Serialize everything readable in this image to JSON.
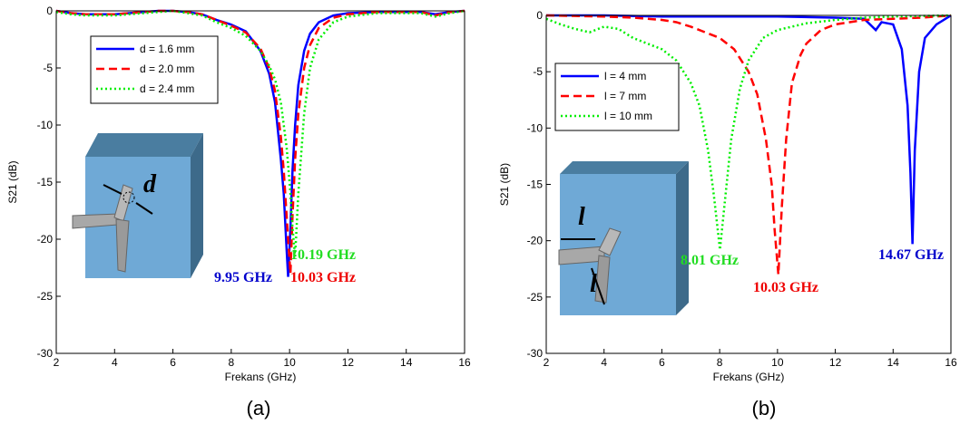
{
  "chart_data": [
    {
      "type": "line",
      "label": "(a)",
      "xlabel": "Frekans (GHz)",
      "ylabel": "S21 (dB)",
      "xlim": [
        2,
        16
      ],
      "ylim": [
        -30,
        0
      ],
      "xticks": [
        2,
        4,
        6,
        8,
        10,
        12,
        14,
        16
      ],
      "yticks": [
        -30,
        -25,
        -20,
        -15,
        -10,
        -5,
        0
      ],
      "legend": "upper left",
      "inset_labels": [
        "d"
      ],
      "series": [
        {
          "name": "d = 1.6 mm",
          "color": "#0000ff",
          "dash": "solid",
          "x": [
            2,
            2.5,
            3,
            3.5,
            4,
            4.5,
            5,
            5.5,
            6,
            6.5,
            7,
            7.5,
            8,
            8.5,
            9,
            9.3,
            9.5,
            9.7,
            9.8,
            9.9,
            9.95,
            10.03,
            10.1,
            10.19,
            10.3,
            10.5,
            10.7,
            11,
            11.5,
            12,
            13,
            14,
            14.5,
            15,
            15.5,
            16
          ],
          "values": [
            0,
            -0.2,
            -0.3,
            -0.3,
            -0.3,
            -0.2,
            -0.1,
            0,
            0,
            -0.1,
            -0.3,
            -0.8,
            -1.2,
            -1.8,
            -3.5,
            -5.5,
            -8,
            -13,
            -16,
            -21,
            -23.3,
            -19,
            -14,
            -10,
            -6.5,
            -3.5,
            -2,
            -1,
            -0.4,
            -0.2,
            -0.1,
            -0.1,
            -0.1,
            -0.3,
            -0.1,
            0
          ]
        },
        {
          "name": "d = 2.0 mm",
          "color": "#ff0000",
          "dash": "dashed",
          "x": [
            2,
            2.5,
            3,
            3.5,
            4,
            4.5,
            5,
            5.5,
            6,
            6.5,
            7,
            7.5,
            8,
            8.5,
            9,
            9.3,
            9.5,
            9.7,
            9.8,
            9.9,
            9.95,
            10.03,
            10.1,
            10.19,
            10.3,
            10.5,
            10.7,
            11,
            11.5,
            12,
            13,
            14,
            14.5,
            15,
            15.5,
            16
          ],
          "values": [
            0,
            -0.2,
            -0.3,
            -0.3,
            -0.3,
            -0.2,
            -0.1,
            0,
            0,
            -0.1,
            -0.3,
            -0.8,
            -1.3,
            -1.9,
            -3.3,
            -5,
            -7,
            -11,
            -14,
            -18,
            -20,
            -23,
            -18,
            -13,
            -9,
            -5,
            -3,
            -1.5,
            -0.6,
            -0.3,
            -0.1,
            -0.1,
            -0.1,
            -0.4,
            -0.1,
            0
          ]
        },
        {
          "name": "d = 2.4 mm",
          "color": "#00ee00",
          "dash": "dotted",
          "x": [
            2,
            2.5,
            3,
            3.5,
            4,
            4.5,
            5,
            5.5,
            6,
            6.5,
            7,
            7.5,
            8,
            8.5,
            9,
            9.3,
            9.5,
            9.7,
            9.8,
            9.9,
            9.95,
            10.03,
            10.1,
            10.19,
            10.3,
            10.5,
            10.7,
            11,
            11.5,
            12,
            13,
            14,
            14.5,
            15,
            15.5,
            16
          ],
          "values": [
            -0.1,
            -0.3,
            -0.4,
            -0.4,
            -0.4,
            -0.3,
            -0.2,
            -0.1,
            0,
            -0.2,
            -0.4,
            -1,
            -1.5,
            -2.2,
            -3.5,
            -4.8,
            -6,
            -8,
            -10,
            -12,
            -13.5,
            -16,
            -19,
            -21.5,
            -16,
            -9,
            -5,
            -2.5,
            -1,
            -0.5,
            -0.2,
            -0.2,
            -0.2,
            -0.5,
            -0.2,
            0
          ]
        }
      ],
      "annotations": [
        {
          "text": "9.95 GHz",
          "color": "#0000cc"
        },
        {
          "text": "10.03 GHz",
          "color": "#ee0000"
        },
        {
          "text": "10.19 GHz",
          "color": "#22dd22"
        }
      ]
    },
    {
      "type": "line",
      "label": "(b)",
      "xlabel": "Frekans (GHz)",
      "ylabel": "S21 (dB)",
      "xlim": [
        2,
        16
      ],
      "ylim": [
        -30,
        0
      ],
      "xticks": [
        2,
        4,
        6,
        8,
        10,
        12,
        14,
        16
      ],
      "yticks": [
        -30,
        -25,
        -20,
        -15,
        -10,
        -5,
        0
      ],
      "legend": "upper left",
      "inset_labels": [
        "l",
        "l"
      ],
      "series": [
        {
          "name": "l = 4 mm",
          "color": "#0000ff",
          "dash": "solid",
          "x": [
            2,
            4,
            6,
            8,
            10,
            12,
            13,
            13.2,
            13.4,
            13.6,
            14,
            14.3,
            14.5,
            14.6,
            14.67,
            14.75,
            14.9,
            15.1,
            15.5,
            16
          ],
          "values": [
            0,
            0,
            -0.1,
            -0.1,
            -0.1,
            -0.2,
            -0.3,
            -0.8,
            -1.3,
            -0.6,
            -0.8,
            -3,
            -8,
            -14,
            -20.3,
            -12,
            -5,
            -2,
            -0.8,
            0
          ]
        },
        {
          "name": "l = 7 mm",
          "color": "#ff0000",
          "dash": "dashed",
          "x": [
            2,
            4,
            5,
            6,
            6.5,
            7,
            7.5,
            8,
            8.5,
            9,
            9.3,
            9.6,
            9.8,
            9.9,
            10.03,
            10.15,
            10.3,
            10.5,
            10.8,
            11,
            11.5,
            12,
            13,
            14,
            15,
            16
          ],
          "values": [
            0,
            -0.1,
            -0.2,
            -0.4,
            -0.6,
            -1,
            -1.5,
            -2,
            -3,
            -5,
            -7,
            -11,
            -15,
            -19,
            -23,
            -17,
            -11,
            -6,
            -3.5,
            -2.5,
            -1.3,
            -0.8,
            -0.4,
            -0.3,
            -0.2,
            0
          ]
        },
        {
          "name": "l = 10 mm",
          "color": "#00ee00",
          "dash": "dotted",
          "x": [
            2,
            2.5,
            3,
            3.5,
            4,
            4.5,
            5,
            5.5,
            6,
            6.5,
            7,
            7.3,
            7.6,
            7.8,
            8.01,
            8.2,
            8.4,
            8.7,
            9,
            9.5,
            10,
            11,
            12,
            13,
            14,
            16
          ],
          "values": [
            -0.3,
            -0.8,
            -1.2,
            -1.5,
            -1,
            -1.2,
            -2,
            -2.5,
            -3,
            -4,
            -6,
            -8,
            -12,
            -16,
            -20.8,
            -16,
            -11,
            -6.5,
            -4,
            -2,
            -1.3,
            -0.7,
            -0.4,
            -0.2,
            -0.1,
            0
          ]
        }
      ],
      "annotations": [
        {
          "text": "8.01 GHz",
          "color": "#22dd22"
        },
        {
          "text": "10.03 GHz",
          "color": "#ee0000"
        },
        {
          "text": "14.67 GHz",
          "color": "#0000cc"
        }
      ]
    }
  ]
}
